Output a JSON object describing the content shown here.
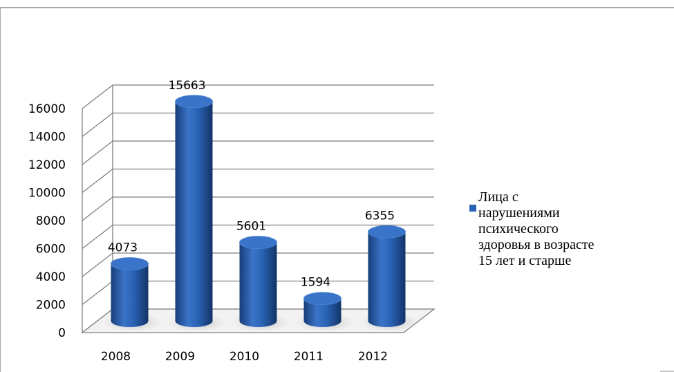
{
  "chart_data": {
    "type": "bar",
    "style": "3d-cylinder",
    "categories": [
      "2008",
      "2009",
      "2010",
      "2011",
      "2012"
    ],
    "series": [
      {
        "name": "Лица с нарушениями психического здоровья в возрасте 15 лет и старше",
        "values": [
          4073,
          15663,
          5601,
          1594,
          6355
        ],
        "labels": [
          "4073",
          "15663",
          "5601",
          "1594",
          "6355"
        ]
      }
    ],
    "y_ticks": [
      "0",
      "2000",
      "4000",
      "6000",
      "8000",
      "10000",
      "12000",
      "14000",
      "16000"
    ],
    "ylim": [
      0,
      16000
    ],
    "grid": true,
    "legend_position": "right",
    "colors": {
      "bar": "#2a63b6",
      "bar_dark": "#173e78",
      "bar_light": "#4f8ad8",
      "bar_top": "#3a74c8",
      "grid": "#7f7f7f",
      "frame": "#888888"
    }
  },
  "legend": {
    "text_lines": [
      "Лица с",
      "нарушениями",
      "психического",
      "здоровья в возрасте",
      "15 лет и старше"
    ]
  }
}
